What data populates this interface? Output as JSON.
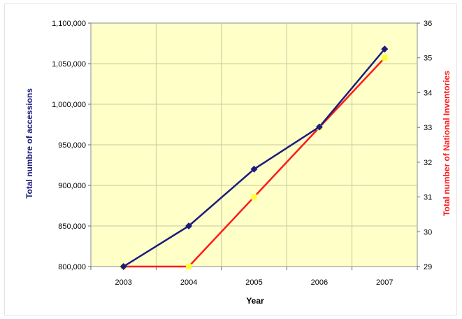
{
  "chart_data": {
    "type": "line",
    "x": [
      2003,
      2004,
      2005,
      2006,
      2007
    ],
    "xlabel": "Year",
    "ylabel": "Total numbre of accessions",
    "y2label": "Total number of National Inventories",
    "ylim": [
      800000,
      1100000
    ],
    "y2lim": [
      29,
      36
    ],
    "y_ticks": [
      "800,000",
      "850,000",
      "900,000",
      "950,000",
      "1,000,000",
      "1,050,000",
      "1,100,000"
    ],
    "y2_ticks": [
      "29",
      "30",
      "31",
      "32",
      "33",
      "34",
      "35",
      "36"
    ],
    "x_ticks": [
      "2003",
      "2004",
      "2005",
      "2006",
      "2007"
    ],
    "grid": true,
    "plot_background": "#ffffc8",
    "series": [
      {
        "axis": "left",
        "values": [
          800000,
          850000,
          920000,
          972000,
          1068000
        ],
        "color": "#1c1c7c",
        "marker": "diamond"
      },
      {
        "axis": "right",
        "values": [
          29,
          29,
          31,
          33,
          35
        ],
        "color": "#ff1a1a",
        "marker": "square",
        "marker_color": "#ffff33"
      }
    ]
  }
}
